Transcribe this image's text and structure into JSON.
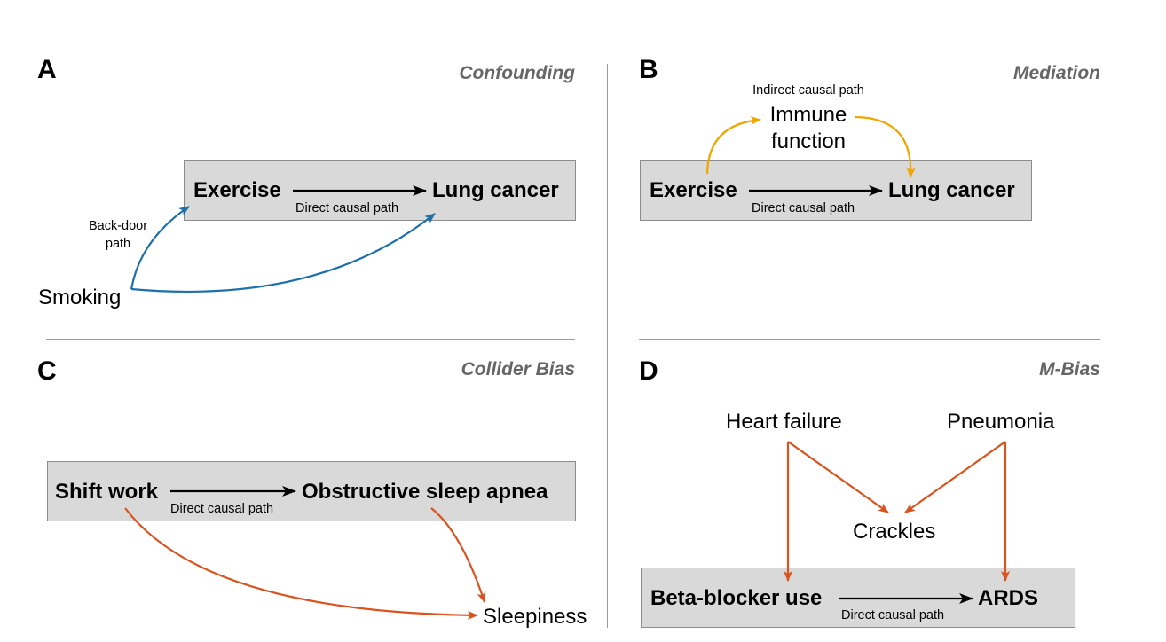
{
  "panels": {
    "a": {
      "letter": "A",
      "title": "Confounding",
      "exposure": "Exercise",
      "outcome": "Lung cancer",
      "direct_label": "Direct causal path",
      "confounder": "Smoking",
      "backdoor_label": "Back-door\npath"
    },
    "b": {
      "letter": "B",
      "title": "Mediation",
      "exposure": "Exercise",
      "outcome": "Lung cancer",
      "direct_label": "Direct causal path",
      "mediator": "Immune\nfunction",
      "indirect_label": "Indirect causal path"
    },
    "c": {
      "letter": "C",
      "title": "Collider Bias",
      "exposure": "Shift work",
      "outcome": "Obstructive sleep apnea",
      "direct_label": "Direct causal path",
      "collider": "Sleepiness"
    },
    "d": {
      "letter": "D",
      "title": "M-Bias",
      "cause1": "Heart failure",
      "cause2": "Pneumonia",
      "collider": "Crackles",
      "exposure": "Beta-blocker use",
      "outcome": "ARDS",
      "direct_label": "Direct causal path"
    }
  },
  "colors": {
    "confounding_arrow": "#1f6fa8",
    "mediation_arrow": "#f0a500",
    "collider_arrow": "#d9531e",
    "direct_arrow": "#000000",
    "box_fill": "#d9d9d9",
    "title_gray": "#666666"
  }
}
